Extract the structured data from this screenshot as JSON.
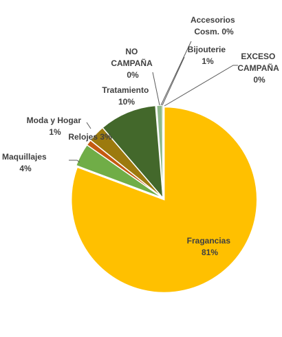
{
  "chart_data": {
    "type": "pie",
    "title": "",
    "slices": [
      {
        "name": "Fragancias",
        "value": 81,
        "label_pct": "81%",
        "color": "#FFC000"
      },
      {
        "name": "Maquillajes",
        "value": 4,
        "label_pct": "4%",
        "color": "#70AD47"
      },
      {
        "name": "Moda y Hogar",
        "value": 1,
        "label_pct": "1%",
        "color": "#C55A11"
      },
      {
        "name": "Relojes",
        "value": 3,
        "label_pct": "3%",
        "color": "#9C7A0E"
      },
      {
        "name": "Tratamiento",
        "value": 10,
        "label_pct": "10%",
        "color": "#43682B"
      },
      {
        "name": "NO CAMPAÑA",
        "value": 0,
        "label_pct": "0%",
        "color": "#A9D18E"
      },
      {
        "name": "Accesorios Cosm.",
        "value": 0,
        "label_pct": "0%",
        "color": "#D6B656"
      },
      {
        "name": "Bijouterie",
        "value": 1,
        "label_pct": "1%",
        "color": "#8FB98A"
      },
      {
        "name": "EXCESO CAMPAÑA",
        "value": 0,
        "label_pct": "0%",
        "color": "#548235"
      }
    ],
    "labels": {
      "fragancias": [
        "Fragancias",
        "81%"
      ],
      "maquillajes": [
        "Maquillajes",
        "4%"
      ],
      "moda_hogar": [
        "Moda y Hogar",
        "1%"
      ],
      "relojes": "Relojes 3%",
      "tratamiento": [
        "Tratamiento",
        "10%"
      ],
      "no_campana": [
        "NO",
        "CAMPAÑA",
        "0%"
      ],
      "accesorios": [
        "Accesorios",
        "Cosm. 0%"
      ],
      "bijouterie": [
        "Bijouterie",
        "1%"
      ],
      "exceso": [
        "EXCESO",
        "CAMPAÑA",
        "0%"
      ]
    }
  }
}
